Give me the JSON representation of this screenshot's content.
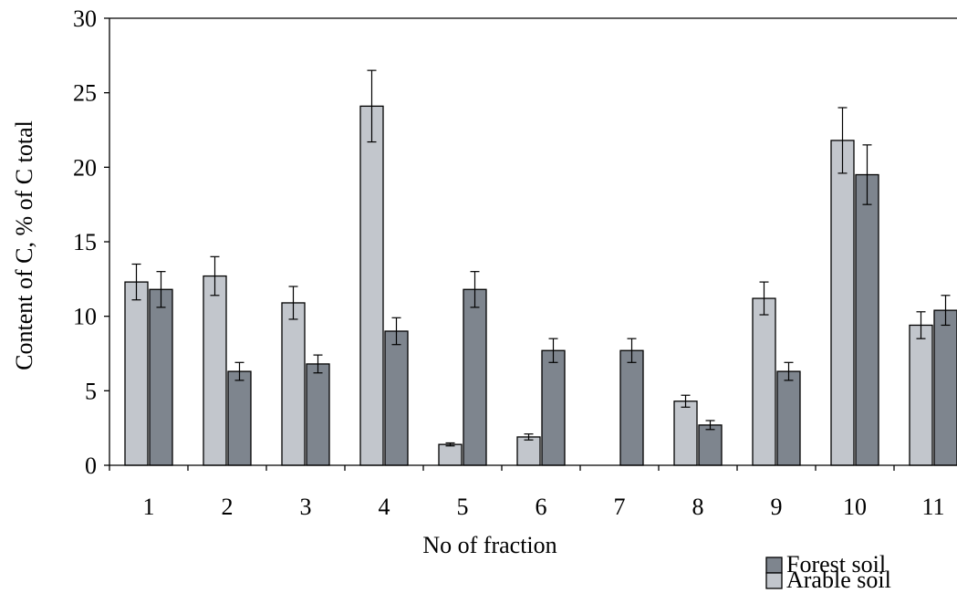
{
  "chart_data": {
    "type": "bar",
    "title": "",
    "xlabel": "No of fraction",
    "ylabel": "Content of C, % of C total",
    "ylim": [
      0,
      30
    ],
    "yticks": [
      0,
      5,
      10,
      15,
      20,
      25,
      30
    ],
    "categories": [
      "1",
      "2",
      "3",
      "4",
      "5",
      "6",
      "7",
      "8",
      "9",
      "10",
      "11"
    ],
    "grid": false,
    "legend_position": "bottom-right",
    "series": [
      {
        "name": "Arable soil",
        "color": "#c2c6cc",
        "values": [
          12.3,
          12.7,
          10.9,
          24.1,
          1.4,
          1.9,
          0,
          4.3,
          11.2,
          21.8,
          9.4
        ],
        "errors": [
          1.2,
          1.3,
          1.1,
          2.4,
          0.1,
          0.2,
          0,
          0.4,
          1.1,
          2.2,
          0.9
        ]
      },
      {
        "name": "Forest soil",
        "color": "#7e858e",
        "values": [
          11.8,
          6.3,
          6.8,
          9.0,
          11.8,
          7.7,
          7.7,
          2.7,
          6.3,
          19.5,
          10.4
        ],
        "errors": [
          1.2,
          0.6,
          0.6,
          0.9,
          1.2,
          0.8,
          0.8,
          0.3,
          0.6,
          2.0,
          1.0
        ]
      }
    ]
  }
}
